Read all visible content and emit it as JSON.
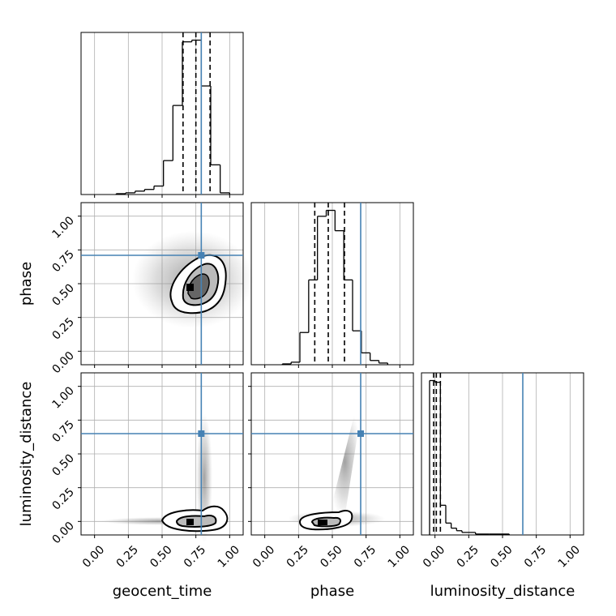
{
  "chart_data": {
    "type": "corner",
    "parameters": [
      "geocent_time",
      "phase",
      "luminosity_distance"
    ],
    "lims": [
      [
        -0.1,
        1.1
      ],
      [
        -0.1,
        1.1
      ],
      [
        -0.1,
        1.1
      ]
    ],
    "ticks": [
      {
        "value": 0,
        "label": "0.00"
      },
      {
        "value": 0.25,
        "label": "0.25"
      },
      {
        "value": 0.5,
        "label": "0.50"
      },
      {
        "value": 0.75,
        "label": "0.75"
      },
      {
        "value": 1,
        "label": "1.00"
      }
    ],
    "truths": [
      0.79,
      0.71,
      0.65
    ],
    "truth_color": "#4682b4",
    "grid": true,
    "histograms": [
      {
        "bins": [
          0.16,
          0.23,
          0.3,
          0.37,
          0.44,
          0.51,
          0.58,
          0.65,
          0.72,
          0.79,
          0.86,
          0.93,
          1.0
        ],
        "values": [
          1,
          2,
          4,
          6,
          10,
          40,
          105,
          180,
          182,
          128,
          35,
          2
        ],
        "quantiles": [
          0.655,
          0.75,
          0.855
        ]
      },
      {
        "bins": [
          0.13,
          0.195,
          0.26,
          0.325,
          0.39,
          0.455,
          0.52,
          0.585,
          0.65,
          0.715,
          0.78,
          0.845,
          0.91
        ],
        "values": [
          1,
          3,
          38,
          100,
          175,
          182,
          158,
          100,
          40,
          14,
          5,
          2
        ],
        "quantiles": [
          0.37,
          0.47,
          0.59
        ]
      },
      {
        "bins": [
          -0.04,
          0,
          0.04,
          0.08,
          0.12,
          0.16,
          0.2,
          0.3,
          0.4,
          0.55
        ],
        "values": [
          182,
          180,
          35,
          14,
          8,
          5,
          3,
          1,
          1
        ],
        "quantiles": [
          -0.01,
          0.01,
          0.04
        ]
      }
    ]
  }
}
